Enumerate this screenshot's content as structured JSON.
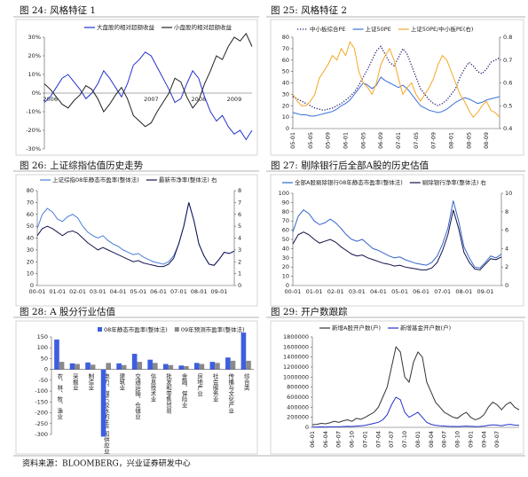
{
  "chart_data": [
    {
      "type": "line",
      "title": "图 24:  风格特征 1",
      "categories": [
        null,
        "2006",
        null,
        null,
        null,
        null,
        null,
        null,
        null,
        null,
        null,
        null,
        null,
        null,
        null,
        null,
        null,
        null,
        "2007",
        null,
        null,
        null,
        null,
        null,
        null,
        null,
        "2008",
        null,
        null,
        null,
        null,
        null,
        "2009",
        null,
        null,
        null
      ],
      "series": [
        {
          "name": "大盘股的相对超额收益",
          "color": "#2233cc",
          "values": [
            -5,
            -2,
            3,
            8,
            10,
            6,
            2,
            -3,
            0,
            5,
            12,
            8,
            3,
            -2,
            5,
            15,
            18,
            22,
            20,
            14,
            8,
            2,
            -5,
            -3,
            5,
            12,
            8,
            -2,
            -10,
            -15,
            -12,
            -18,
            -22,
            -20,
            -25,
            -20
          ]
        },
        {
          "name": "小盘股的相对超额收益",
          "color": "#222222",
          "values": [
            5,
            2,
            -2,
            -6,
            -8,
            -4,
            -1,
            4,
            2,
            -3,
            -10,
            -6,
            -1,
            3,
            -3,
            -12,
            -15,
            -18,
            -16,
            -10,
            -5,
            0,
            8,
            6,
            -2,
            -8,
            -4,
            5,
            12,
            20,
            18,
            25,
            30,
            28,
            32,
            25
          ]
        }
      ],
      "ylim": [
        -30,
        30
      ],
      "yticks": [
        {
          "value": 30,
          "label": "30%"
        },
        {
          "value": 20,
          "label": "20%"
        },
        {
          "value": 10,
          "label": "10%"
        },
        {
          "value": 0,
          "label": "0%"
        },
        {
          "value": -10,
          "label": "-10%"
        },
        {
          "value": -20,
          "label": "-20%"
        },
        {
          "value": -30,
          "label": "-30%"
        }
      ]
    },
    {
      "type": "line",
      "title": "图 25:  风格特征 2",
      "categories": [
        "05-01",
        null,
        null,
        null,
        "05-05",
        null,
        null,
        null,
        "05-09",
        null,
        null,
        null,
        "06-01",
        null,
        null,
        null,
        "06-05",
        null,
        null,
        null,
        "06-09",
        null,
        null,
        null,
        "07-01",
        null,
        null,
        null,
        "07-05",
        null,
        null,
        null,
        "07-09",
        null,
        null,
        null,
        "08-01",
        null,
        null,
        null,
        "08-05",
        null,
        null,
        null,
        "08-09",
        null,
        null,
        null
      ],
      "series": [
        {
          "name": "中小板综合PE",
          "color": "#1a1a6e",
          "dash": "dotted",
          "values": [
            28,
            26,
            24,
            22,
            20,
            18,
            17,
            16,
            17,
            18,
            20,
            22,
            25,
            28,
            32,
            38,
            45,
            52,
            60,
            68,
            72,
            65,
            58,
            55,
            62,
            70,
            65,
            55,
            45,
            35,
            30,
            25,
            22,
            20,
            22,
            25,
            30,
            35,
            45,
            52,
            58,
            55,
            50,
            48,
            52,
            58,
            60,
            62
          ]
        },
        {
          "name": "上证50PE",
          "color": "#3a6fd8",
          "values": [
            14,
            13,
            12,
            12,
            11,
            11,
            12,
            13,
            14,
            15,
            17,
            20,
            22,
            25,
            30,
            35,
            40,
            38,
            35,
            38,
            45,
            42,
            40,
            38,
            36,
            38,
            35,
            30,
            25,
            20,
            18,
            16,
            15,
            14,
            15,
            17,
            20,
            23,
            25,
            27,
            26,
            24,
            22,
            23,
            25,
            26,
            27,
            28
          ]
        },
        {
          "name": "上证50PE/中小板PE(右)",
          "color": "#f5a623",
          "axis": "y2",
          "values": [
            0.55,
            0.52,
            0.5,
            0.5,
            0.52,
            0.55,
            0.62,
            0.65,
            0.68,
            0.72,
            0.7,
            0.75,
            0.72,
            0.78,
            0.75,
            0.65,
            0.6,
            0.58,
            0.55,
            0.6,
            0.68,
            0.72,
            0.75,
            0.7,
            0.62,
            0.55,
            0.58,
            0.6,
            0.55,
            0.52,
            0.55,
            0.58,
            0.62,
            0.68,
            0.72,
            0.7,
            0.65,
            0.6,
            0.55,
            0.52,
            0.48,
            0.45,
            0.47,
            0.5,
            0.52,
            0.48,
            0.47,
            0.45
          ]
        }
      ],
      "ylim": [
        0,
        80
      ],
      "yticks": [
        0,
        10,
        20,
        30,
        40,
        50,
        60,
        70,
        80
      ],
      "y2lim": [
        0.4,
        0.8
      ],
      "y2ticks": [
        0.4,
        0.5,
        0.6,
        0.7,
        0.8
      ]
    },
    {
      "type": "line",
      "title": "图 26:  上证综指估值历史走势",
      "categories": [
        "00-01",
        null,
        null,
        null,
        "01-01",
        null,
        null,
        null,
        "02-01",
        null,
        null,
        null,
        "03-01",
        null,
        null,
        null,
        "04-01",
        null,
        null,
        null,
        "05-01",
        null,
        null,
        null,
        "06-01",
        null,
        null,
        null,
        "07-01",
        null,
        null,
        null,
        "08-01",
        null,
        null,
        null,
        "09-01",
        null,
        null,
        null
      ],
      "series": [
        {
          "name": "上证综指08年静态市盈率(整体法)",
          "color": "#4a7fd6",
          "values": [
            48,
            60,
            65,
            62,
            56,
            54,
            58,
            60,
            57,
            50,
            45,
            42,
            40,
            42,
            38,
            35,
            33,
            30,
            28,
            26,
            27,
            24,
            22,
            20,
            19,
            18,
            20,
            25,
            35,
            50,
            70,
            55,
            35,
            25,
            18,
            17,
            22,
            28,
            27,
            29
          ]
        },
        {
          "name": "最新市净率(整体法)  右",
          "color": "#141450",
          "axis": "y2",
          "values": [
            4.2,
            4.8,
            5,
            4.8,
            4.5,
            4.2,
            4.5,
            4.6,
            4.4,
            4,
            3.6,
            3.3,
            3,
            3.2,
            3,
            2.8,
            2.6,
            2.4,
            2.2,
            2,
            2.1,
            1.9,
            1.8,
            1.7,
            1.6,
            1.6,
            1.8,
            2.3,
            3.5,
            5,
            7,
            5.5,
            3.5,
            2.5,
            1.8,
            1.7,
            2.2,
            2.8,
            2.7,
            2.9
          ]
        }
      ],
      "ylim": [
        0,
        80
      ],
      "yticks": [
        0,
        10,
        20,
        30,
        40,
        50,
        60,
        70,
        80
      ],
      "y2lim": [
        0,
        8
      ],
      "y2ticks": [
        0,
        1,
        2,
        3,
        4,
        5,
        6,
        7,
        8
      ]
    },
    {
      "type": "line",
      "title": "图 27:  剔除银行后全部A股的历史估值",
      "categories": [
        "00-01",
        null,
        null,
        null,
        "01-01",
        null,
        null,
        null,
        "02-01",
        null,
        null,
        null,
        "03-01",
        null,
        null,
        null,
        "04-01",
        null,
        null,
        null,
        "05-01",
        null,
        null,
        null,
        "06-01",
        null,
        null,
        null,
        "07-01",
        null,
        null,
        null,
        "08-01",
        null,
        null,
        null,
        "09-01",
        null,
        null,
        null
      ],
      "series": [
        {
          "name": "全部A股剔除银行08年静态市盈率(整体法)",
          "color": "#3366cc",
          "values": [
            58,
            75,
            82,
            78,
            70,
            66,
            68,
            72,
            68,
            62,
            55,
            50,
            48,
            50,
            45,
            40,
            38,
            35,
            32,
            30,
            31,
            28,
            26,
            24,
            23,
            22,
            25,
            32,
            45,
            62,
            92,
            70,
            42,
            30,
            20,
            19,
            25,
            32,
            30,
            34
          ]
        },
        {
          "name": "剔除银行净率(整体法)  右",
          "color": "#101048",
          "axis": "y2",
          "values": [
            4.5,
            5.5,
            5.8,
            5.5,
            5,
            4.6,
            4.8,
            5,
            4.7,
            4.2,
            3.8,
            3.4,
            3.2,
            3.3,
            3,
            2.8,
            2.6,
            2.4,
            2.3,
            2.1,
            2.2,
            2,
            1.9,
            1.8,
            1.7,
            1.7,
            1.9,
            2.5,
            3.8,
            5.5,
            8.2,
            6.2,
            3.6,
            2.5,
            1.8,
            1.7,
            2.3,
            2.9,
            2.8,
            3.1
          ]
        }
      ],
      "ylim": [
        0,
        100
      ],
      "yticks": [
        0,
        10,
        20,
        30,
        40,
        50,
        60,
        70,
        80,
        90,
        100
      ],
      "y2lim": [
        0,
        10
      ],
      "y2ticks": [
        0,
        2,
        4,
        6,
        8,
        10
      ]
    },
    {
      "type": "bar",
      "title": "图 28:  A 股分行业估值",
      "categories": [
        "农、林、牧、渔业",
        "采掘业",
        "制造业",
        "电力、煤气及水的生产和供应业",
        "建筑业",
        "交通运输、仓储业",
        "信息技术业",
        "批发和零售贸易",
        "金融、保险业",
        "房地产业",
        "社会服务业",
        "传播与文化产业",
        "综合类"
      ],
      "series": [
        {
          "name": "08年静态市盈率(整体法)",
          "color": "#3d5ee0",
          "values": [
            138,
            28,
            32,
            -310,
            28,
            72,
            45,
            25,
            18,
            30,
            35,
            55,
            170
          ]
        },
        {
          "name": "09年预测市盈率(整体法)",
          "color": "#8a8a8a",
          "values": [
            35,
            25,
            22,
            30,
            20,
            35,
            30,
            20,
            15,
            25,
            30,
            40,
            40
          ]
        }
      ],
      "ylim": [
        -300,
        150
      ],
      "yticks": [
        150,
        100,
        50,
        0,
        -50,
        -100,
        -150,
        -200,
        -250,
        -300
      ]
    },
    {
      "type": "line",
      "title": "图 29:  开户数跟踪",
      "categories": [
        "06-01",
        null,
        null,
        "06-04",
        null,
        null,
        "06-07",
        null,
        null,
        "06-10",
        null,
        null,
        "07-01",
        null,
        null,
        "07-04",
        null,
        null,
        "07-07",
        null,
        null,
        "07-10",
        null,
        null,
        "08-01",
        null,
        null,
        "08-04",
        null,
        null,
        "08-07",
        null,
        null,
        "08-10",
        null,
        null,
        "09-01",
        null,
        null,
        "09-04",
        null,
        null,
        "09-07",
        null,
        null,
        null,
        null,
        null
      ],
      "series": [
        {
          "name": "新增A股开户数(户)",
          "color": "#333333",
          "values": [
            50000,
            60000,
            80000,
            70000,
            90000,
            120000,
            100000,
            130000,
            150000,
            120000,
            180000,
            160000,
            200000,
            250000,
            300000,
            400000,
            600000,
            800000,
            1200000,
            1600000,
            1500000,
            1000000,
            900000,
            1300000,
            1500000,
            1400000,
            900000,
            700000,
            500000,
            400000,
            300000,
            250000,
            200000,
            180000,
            250000,
            300000,
            200000,
            150000,
            180000,
            250000,
            400000,
            500000,
            450000,
            350000,
            450000,
            500000,
            400000,
            350000
          ]
        },
        {
          "name": "新增基金开户数(户)",
          "color": "#2233cc",
          "values": [
            5000,
            6000,
            8000,
            7000,
            10000,
            12000,
            10000,
            15000,
            20000,
            18000,
            25000,
            30000,
            40000,
            60000,
            80000,
            100000,
            150000,
            250000,
            450000,
            600000,
            550000,
            300000,
            200000,
            250000,
            300000,
            200000,
            100000,
            60000,
            40000,
            30000,
            25000,
            20000,
            18000,
            15000,
            20000,
            25000,
            20000,
            15000,
            18000,
            25000,
            40000,
            50000,
            45000,
            30000,
            50000,
            60000,
            45000,
            40000
          ]
        }
      ],
      "ylim": [
        0,
        1800000
      ],
      "yticks": [
        0,
        200000,
        400000,
        600000,
        800000,
        1000000,
        1200000,
        1400000,
        1600000,
        1800000
      ]
    }
  ],
  "source": "资料来源：BLOOMBERG，兴业证券研发中心"
}
